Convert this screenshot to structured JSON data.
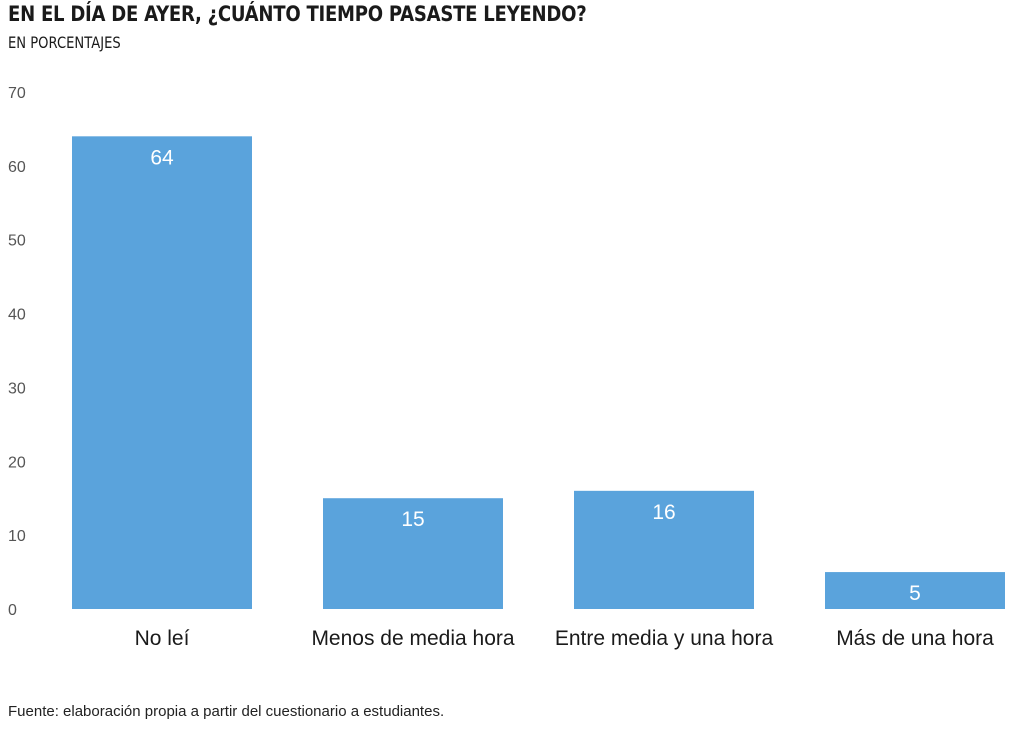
{
  "colors": {
    "bar": "#5aa3dc",
    "bar_label": "#ffffff",
    "axis_text": "#555555"
  },
  "chart_data": {
    "type": "bar",
    "title": "EN EL DÍA DE AYER, ¿CUÁNTO TIEMPO PASASTE LEYENDO?",
    "subtitle": "EN PORCENTAJES",
    "categories": [
      "No leí",
      "Menos de media hora",
      "Entre media y una hora",
      "Más de una hora"
    ],
    "values": [
      64,
      15,
      16,
      5
    ],
    "ylim": [
      0,
      70
    ],
    "yticks": [
      0,
      10,
      20,
      30,
      40,
      50,
      60,
      70
    ],
    "grid": false,
    "data_labels": true,
    "source": "Fuente: elaboración propia a partir del cuestionario a estudiantes."
  }
}
